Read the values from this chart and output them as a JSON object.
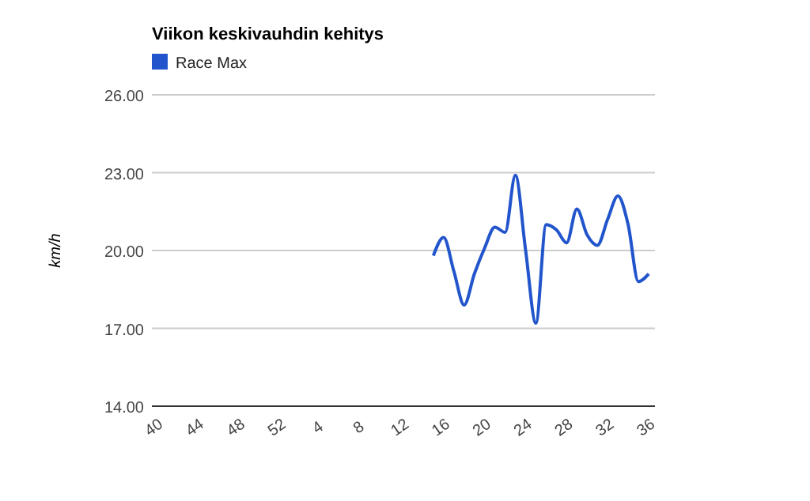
{
  "chart_data": {
    "type": "line",
    "title": "Viikon keskivauhdin kehitys",
    "ylabel": "km/h",
    "categories": [
      "40",
      null,
      null,
      null,
      "44",
      null,
      null,
      null,
      "48",
      null,
      null,
      null,
      "52",
      null,
      null,
      null,
      "4",
      null,
      null,
      null,
      "8",
      null,
      null,
      null,
      "12",
      null,
      null,
      null,
      "16",
      null,
      null,
      null,
      "20",
      null,
      null,
      null,
      "24",
      null,
      null,
      null,
      "28",
      null,
      null,
      null,
      "32",
      null,
      null,
      null,
      "36"
    ],
    "series": [
      {
        "name": "Race Max",
        "color": "#2255cc",
        "values": [
          null,
          null,
          null,
          null,
          null,
          null,
          null,
          null,
          null,
          null,
          null,
          null,
          null,
          null,
          null,
          null,
          null,
          null,
          null,
          null,
          null,
          null,
          null,
          null,
          null,
          null,
          null,
          19.8,
          20.5,
          19.2,
          17.9,
          19.1,
          20.1,
          20.9,
          20.7,
          22.9,
          20.0,
          17.2,
          21.0,
          20.8,
          20.3,
          21.6,
          20.6,
          20.2,
          21.2,
          22.1,
          21.0,
          18.8,
          19.1
        ]
      }
    ],
    "ylim": [
      14,
      26
    ],
    "yticks": [
      {
        "value": 14,
        "label": "14.00"
      },
      {
        "value": 17,
        "label": "17.00"
      },
      {
        "value": 20,
        "label": "20.00"
      },
      {
        "value": 23,
        "label": "23.00"
      },
      {
        "value": 26,
        "label": "26.00"
      }
    ],
    "grid": "y",
    "legend": "top",
    "marker": "none",
    "line_style": "solid"
  }
}
